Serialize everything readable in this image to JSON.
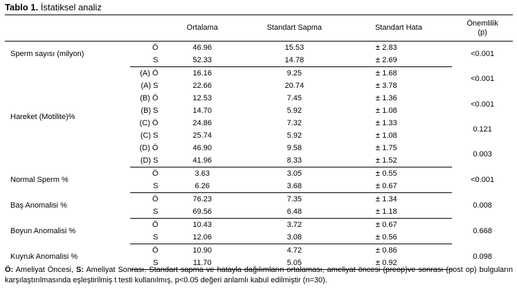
{
  "caption": {
    "bold": "Tablo 1.",
    "text": " İstatiksel analiz"
  },
  "headers": {
    "label": "",
    "group": "",
    "mean": "Ortalama",
    "sd": "Standart Sapma",
    "se": "Standart Hata",
    "p_line1": "Önemlilik",
    "p_line2": "(p)"
  },
  "pm_symbol": "±",
  "groups": [
    {
      "label": "Sperm sayısı (milyon)",
      "rows": [
        {
          "group": "Ö",
          "mean": "46.96",
          "sd": "15.53",
          "se": "2.83"
        },
        {
          "group": "S",
          "mean": "52.33",
          "sd": "14.78",
          "se": "2.69"
        }
      ],
      "p": [
        "<0.001"
      ]
    },
    {
      "label": "Hareket (Motilite)%",
      "rows": [
        {
          "group": "(A) Ö",
          "mean": "16.16",
          "sd": "9.25",
          "se": "1.68"
        },
        {
          "group": "(A) S",
          "mean": "22.66",
          "sd": "20.74",
          "se": "3.78"
        },
        {
          "group": "(B) Ö",
          "mean": "12.53",
          "sd": "7.45",
          "se": "1.36"
        },
        {
          "group": "(B) S",
          "mean": "14.70",
          "sd": "5.92",
          "se": "1.08"
        },
        {
          "group": "(C) Ö",
          "mean": "24.86",
          "sd": "7.32",
          "se": "1.33"
        },
        {
          "group": "(C) S",
          "mean": "25.74",
          "sd": "5.92",
          "se": "1.08"
        },
        {
          "group": "(D) Ö",
          "mean": "46.90",
          "sd": "9.58",
          "se": "1.75"
        },
        {
          "group": "(D) S",
          "mean": "41.96",
          "sd": "8.33",
          "se": "1.52"
        }
      ],
      "p": [
        "<0.001",
        "<0.001",
        "0.121",
        "0.003"
      ]
    },
    {
      "label": "Normal Sperm %",
      "rows": [
        {
          "group": "Ö",
          "mean": "3.63",
          "sd": "3.05",
          "se": "0.55"
        },
        {
          "group": "S",
          "mean": "6.26",
          "sd": "3.68",
          "se": "0.67"
        }
      ],
      "p": [
        "<0.001"
      ]
    },
    {
      "label": "Baş Anomalisi %",
      "rows": [
        {
          "group": "Ö",
          "mean": "76.23",
          "sd": "7.35",
          "se": "1.34"
        },
        {
          "group": "S",
          "mean": "69.56",
          "sd": "6.48",
          "se": "1.18"
        }
      ],
      "p": [
        "0.008"
      ]
    },
    {
      "label": "Boyun Anomalisi %",
      "rows": [
        {
          "group": "Ö",
          "mean": "10.43",
          "sd": "3.72",
          "se": "0.67"
        },
        {
          "group": "S",
          "mean": "12.06",
          "sd": "3.08",
          "se": "0.56"
        }
      ],
      "p": [
        "0.668"
      ]
    },
    {
      "label": "Kuyruk Anomalisi %",
      "rows": [
        {
          "group": "Ö",
          "mean": "10.90",
          "sd": "4.72",
          "se": "0.86"
        },
        {
          "group": "S",
          "mean": "11.70",
          "sd": "5.05",
          "se": "0.92"
        }
      ],
      "p": [
        "0.098"
      ]
    }
  ],
  "footnote": {
    "o_bold": "Ö:",
    "o_text": " Ameliyat Öncesi, ",
    "s_bold": "S:",
    "s_text": " Ameliyat Sonrası. Standart sapma ve hatayla dağılımların ortalaması, ameliyat öncesi (preop)ve sonrası (post op) bulguların karşılaştırılmasında eşleştirilmiş t testi kullanılmış, p<0.05 değeri anlamlı kabul edilmiştir (n=30)."
  }
}
